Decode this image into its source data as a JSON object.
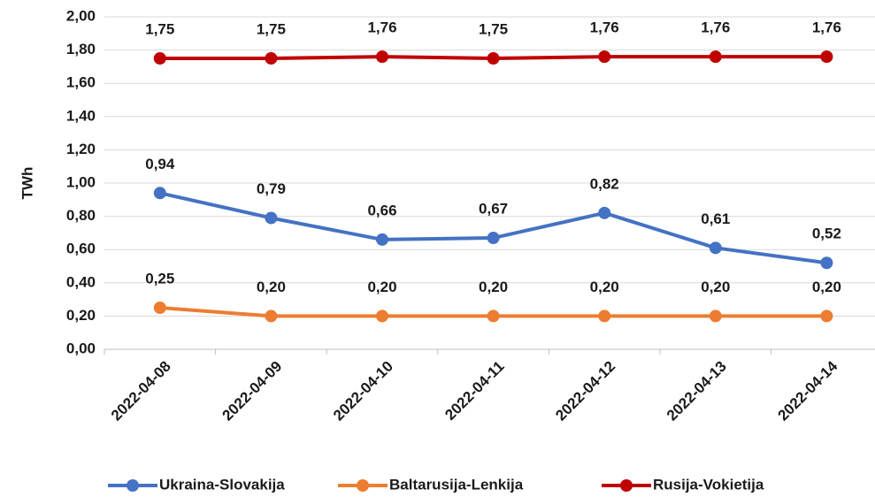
{
  "chart_data": {
    "type": "line",
    "y_label": "TWh",
    "categories": [
      "2022-04-08",
      "2022-04-09",
      "2022-04-10",
      "2022-04-11",
      "2022-04-12",
      "2022-04-13",
      "2022-04-14"
    ],
    "series": [
      {
        "name": "Ukraina-Slovakija",
        "color": "#4472c4",
        "values": [
          0.94,
          0.79,
          0.66,
          0.67,
          0.82,
          0.61,
          0.52
        ],
        "value_labels": [
          "0,94",
          "0,79",
          "0,66",
          "0,67",
          "0,82",
          "0,61",
          "0,52"
        ]
      },
      {
        "name": "Baltarusija-Lenkija",
        "color": "#ed7d31",
        "values": [
          0.25,
          0.2,
          0.2,
          0.2,
          0.2,
          0.2,
          0.2
        ],
        "value_labels": [
          "0,25",
          "0,20",
          "0,20",
          "0,20",
          "0,20",
          "0,20",
          "0,20"
        ]
      },
      {
        "name": "Rusija-Vokietija",
        "color": "#c00000",
        "values": [
          1.75,
          1.75,
          1.76,
          1.75,
          1.76,
          1.76,
          1.76
        ],
        "value_labels": [
          "1,75",
          "1,75",
          "1,76",
          "1,75",
          "1,76",
          "1,76",
          "1,76"
        ]
      }
    ],
    "ylim": [
      0,
      2
    ],
    "yticks": [
      {
        "value": 0,
        "label": "0,00"
      },
      {
        "value": 0.2,
        "label": "0,20"
      },
      {
        "value": 0.4,
        "label": "0,40"
      },
      {
        "value": 0.6,
        "label": "0,60"
      },
      {
        "value": 0.8,
        "label": "0,80"
      },
      {
        "value": 1,
        "label": "1,00"
      },
      {
        "value": 1.2,
        "label": "1,20"
      },
      {
        "value": 1.4,
        "label": "1,40"
      },
      {
        "value": 1.6,
        "label": "1,60"
      },
      {
        "value": 1.8,
        "label": "1,80"
      },
      {
        "value": 2,
        "label": "2,00"
      }
    ],
    "grid": true,
    "legend": "bottom"
  }
}
